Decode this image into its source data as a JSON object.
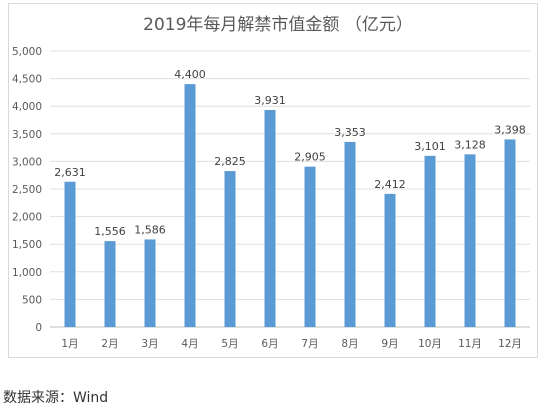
{
  "chart_data": {
    "type": "bar",
    "title": "2019年每月解禁市值金额 （亿元）",
    "categories": [
      "1月",
      "2月",
      "3月",
      "4月",
      "5月",
      "6月",
      "7月",
      "8月",
      "9月",
      "10月",
      "11月",
      "12月"
    ],
    "values": [
      2631,
      1556,
      1586,
      4400,
      2825,
      3931,
      2905,
      3353,
      2412,
      3101,
      3128,
      3398
    ],
    "data_labels": [
      "2,631",
      "1,556",
      "1,586",
      "4,400",
      "2,825",
      "3,931",
      "2,905",
      "3,353",
      "2,412",
      "3,101",
      "3,128",
      "3,398"
    ],
    "y_ticks": [
      "0",
      "500",
      "1,000",
      "1,500",
      "2,000",
      "2,500",
      "3,000",
      "3,500",
      "4,000",
      "4,500",
      "5,000"
    ],
    "ylim": [
      0,
      5000
    ],
    "xlabel": "",
    "ylabel": "",
    "grid": true,
    "bar_color": "#5b9bd5"
  },
  "source_note": "数据来源：Wind"
}
